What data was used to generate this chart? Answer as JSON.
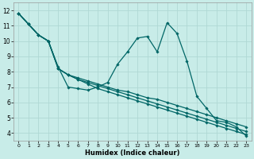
{
  "xlabel": "Humidex (Indice chaleur)",
  "bg_color": "#c8ece8",
  "grid_color": "#b0d8d4",
  "line_color": "#006666",
  "xlim": [
    -0.5,
    23.5
  ],
  "ylim": [
    3.5,
    12.5
  ],
  "xtick_labels": [
    "0",
    "1",
    "2",
    "3",
    "4",
    "5",
    "6",
    "7",
    "8",
    "9",
    "10",
    "11",
    "12",
    "13",
    "14",
    "15",
    "16",
    "17",
    "18",
    "19",
    "20",
    "21",
    "22",
    "23"
  ],
  "ytick_labels": [
    "4",
    "5",
    "6",
    "7",
    "8",
    "9",
    "10",
    "11",
    "12"
  ],
  "ytick_vals": [
    4,
    5,
    6,
    7,
    8,
    9,
    10,
    11,
    12
  ],
  "series_data": [
    [
      11.8,
      11.1,
      10.4,
      10.0,
      8.3,
      7.0,
      6.9,
      6.8,
      7.0,
      7.3,
      8.5,
      9.3,
      10.2,
      10.3,
      9.3,
      11.2,
      10.5,
      8.7,
      6.4,
      5.6,
      4.8,
      4.7,
      4.4,
      3.8
    ],
    [
      11.8,
      11.1,
      10.4,
      10.0,
      8.2,
      7.8,
      7.5,
      7.2,
      6.9,
      6.7,
      6.5,
      6.3,
      6.1,
      5.9,
      5.7,
      5.5,
      5.3,
      5.1,
      4.9,
      4.7,
      4.5,
      4.3,
      4.1,
      3.9
    ],
    [
      11.8,
      11.1,
      10.4,
      10.0,
      8.2,
      7.8,
      7.5,
      7.3,
      7.1,
      6.9,
      6.7,
      6.5,
      6.3,
      6.1,
      5.9,
      5.7,
      5.5,
      5.3,
      5.1,
      4.9,
      4.7,
      4.5,
      4.3,
      4.1
    ],
    [
      11.8,
      11.1,
      10.4,
      10.0,
      8.2,
      7.8,
      7.6,
      7.4,
      7.2,
      7.0,
      6.8,
      6.7,
      6.5,
      6.3,
      6.2,
      6.0,
      5.8,
      5.6,
      5.4,
      5.2,
      5.0,
      4.8,
      4.6,
      4.4
    ]
  ]
}
